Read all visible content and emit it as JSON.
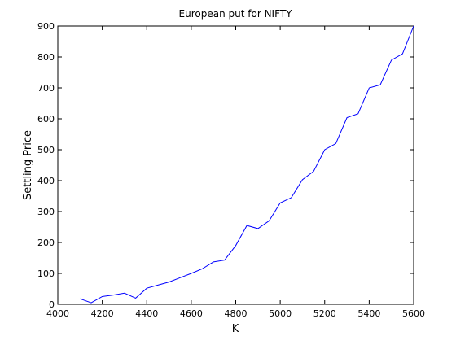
{
  "chart_data": {
    "type": "line",
    "title": "European put for NIFTY",
    "xlabel": "K",
    "ylabel": "Settling Price",
    "xlim": [
      4000,
      5600
    ],
    "ylim": [
      0,
      900
    ],
    "xticks": [
      4000,
      4200,
      4400,
      4600,
      4800,
      5000,
      5200,
      5400,
      5600
    ],
    "yticks": [
      0,
      100,
      200,
      300,
      400,
      500,
      600,
      700,
      800,
      900
    ],
    "grid": false,
    "series": [
      {
        "color": "#0000ff",
        "x": [
          4100,
          4150,
          4200,
          4250,
          4300,
          4350,
          4400,
          4450,
          4500,
          4550,
          4600,
          4650,
          4700,
          4750,
          4800,
          4850,
          4900,
          4950,
          5000,
          5050,
          5100,
          5150,
          5200,
          5250,
          5300,
          5350,
          5400,
          5450,
          5500,
          5550,
          5600
        ],
        "y": [
          18,
          5,
          25,
          30,
          36,
          20,
          52,
          62,
          72,
          86,
          100,
          115,
          137,
          143,
          190,
          255,
          245,
          270,
          328,
          345,
          403,
          430,
          500,
          520,
          604,
          616,
          700,
          710,
          790,
          810,
          900
        ]
      }
    ]
  }
}
